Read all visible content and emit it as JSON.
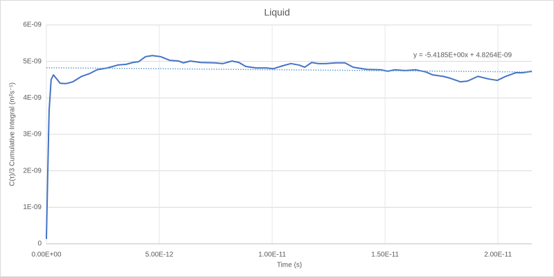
{
  "chart_data": {
    "type": "line",
    "title": "Liquid",
    "xlabel": "Time (s)",
    "ylabel": "C(τ)/3 Cumulative Integral (m²s⁻¹)",
    "x": [
      0,
      6e-14,
      1.2e-13,
      2.1e-13,
      3.1e-13,
      4.3e-13,
      6.1e-13,
      8.6e-13,
      1.17e-12,
      1.56e-12,
      1.93e-12,
      2.24e-12,
      2.7e-12,
      3.16e-12,
      3.53e-12,
      3.83e-12,
      4.08e-12,
      4.39e-12,
      4.69e-12,
      5.06e-12,
      5.46e-12,
      5.86e-12,
      6.07e-12,
      6.38e-12,
      6.84e-12,
      7.45e-12,
      7.82e-12,
      8.22e-12,
      8.53e-12,
      8.83e-12,
      9.29e-12,
      9.75e-12,
      1.006e-11,
      1.046e-11,
      1.083e-11,
      1.119e-11,
      1.144e-11,
      1.175e-11,
      1.205e-11,
      1.236e-11,
      1.282e-11,
      1.322e-11,
      1.359e-11,
      1.42e-11,
      1.481e-11,
      1.512e-11,
      1.543e-11,
      1.589e-11,
      1.635e-11,
      1.681e-11,
      1.711e-11,
      1.757e-11,
      1.788e-11,
      1.834e-11,
      1.865e-11,
      1.911e-11,
      1.957e-11,
      1.997e-11,
      2.034e-11,
      2.08e-11,
      2.11e-11,
      2.15e-11
    ],
    "series": [
      {
        "color": "#4472c4",
        "values": [
          1.3e-10,
          1.94e-09,
          3.65e-09,
          4.5e-09,
          4.63e-09,
          4.54e-09,
          4.4e-09,
          4.39e-09,
          4.44e-09,
          4.59e-09,
          4.67e-09,
          4.77e-09,
          4.82e-09,
          4.9e-09,
          4.92e-09,
          4.97e-09,
          4.99e-09,
          5.13e-09,
          5.16e-09,
          5.13e-09,
          5.03e-09,
          5.01e-09,
          4.96e-09,
          5.01e-09,
          4.97e-09,
          4.96e-09,
          4.94e-09,
          5.01e-09,
          4.97e-09,
          4.86e-09,
          4.82e-09,
          4.82e-09,
          4.8e-09,
          4.88e-09,
          4.94e-09,
          4.9e-09,
          4.84e-09,
          4.97e-09,
          4.94e-09,
          4.94e-09,
          4.96e-09,
          4.96e-09,
          4.84e-09,
          4.78e-09,
          4.77e-09,
          4.73e-09,
          4.77e-09,
          4.75e-09,
          4.77e-09,
          4.71e-09,
          4.63e-09,
          4.59e-09,
          4.54e-09,
          4.44e-09,
          4.46e-09,
          4.59e-09,
          4.52e-09,
          4.48e-09,
          4.59e-09,
          4.69e-09,
          4.69e-09,
          4.73e-09
        ]
      }
    ],
    "trendline": {
      "slope": -5.4185,
      "intercept": 4.8264e-09,
      "color": "#5b9bd5",
      "label": "y = -5.4185E+00x + 4.8264E-09"
    },
    "xlim": [
      0,
      2.15e-11
    ],
    "xticks": [
      {
        "value": 0,
        "label": "0.00E+00"
      },
      {
        "value": 5e-12,
        "label": "5.00E-12"
      },
      {
        "value": 1e-11,
        "label": "1.00E-11"
      },
      {
        "value": 1.5e-11,
        "label": "1.50E-11"
      },
      {
        "value": 2e-11,
        "label": "2.00E-11"
      }
    ],
    "ylim": [
      0,
      6e-09
    ],
    "yticks": [
      0,
      {
        "value": 1e-09,
        "label": "1E-09"
      },
      {
        "value": 2e-09,
        "label": "2E-09"
      },
      {
        "value": 3e-09,
        "label": "3E-09"
      },
      {
        "value": 4e-09,
        "label": "4E-09"
      },
      {
        "value": 5e-09,
        "label": "5E-09"
      },
      {
        "value": 6e-09,
        "label": "6E-09"
      }
    ],
    "grid": true
  }
}
